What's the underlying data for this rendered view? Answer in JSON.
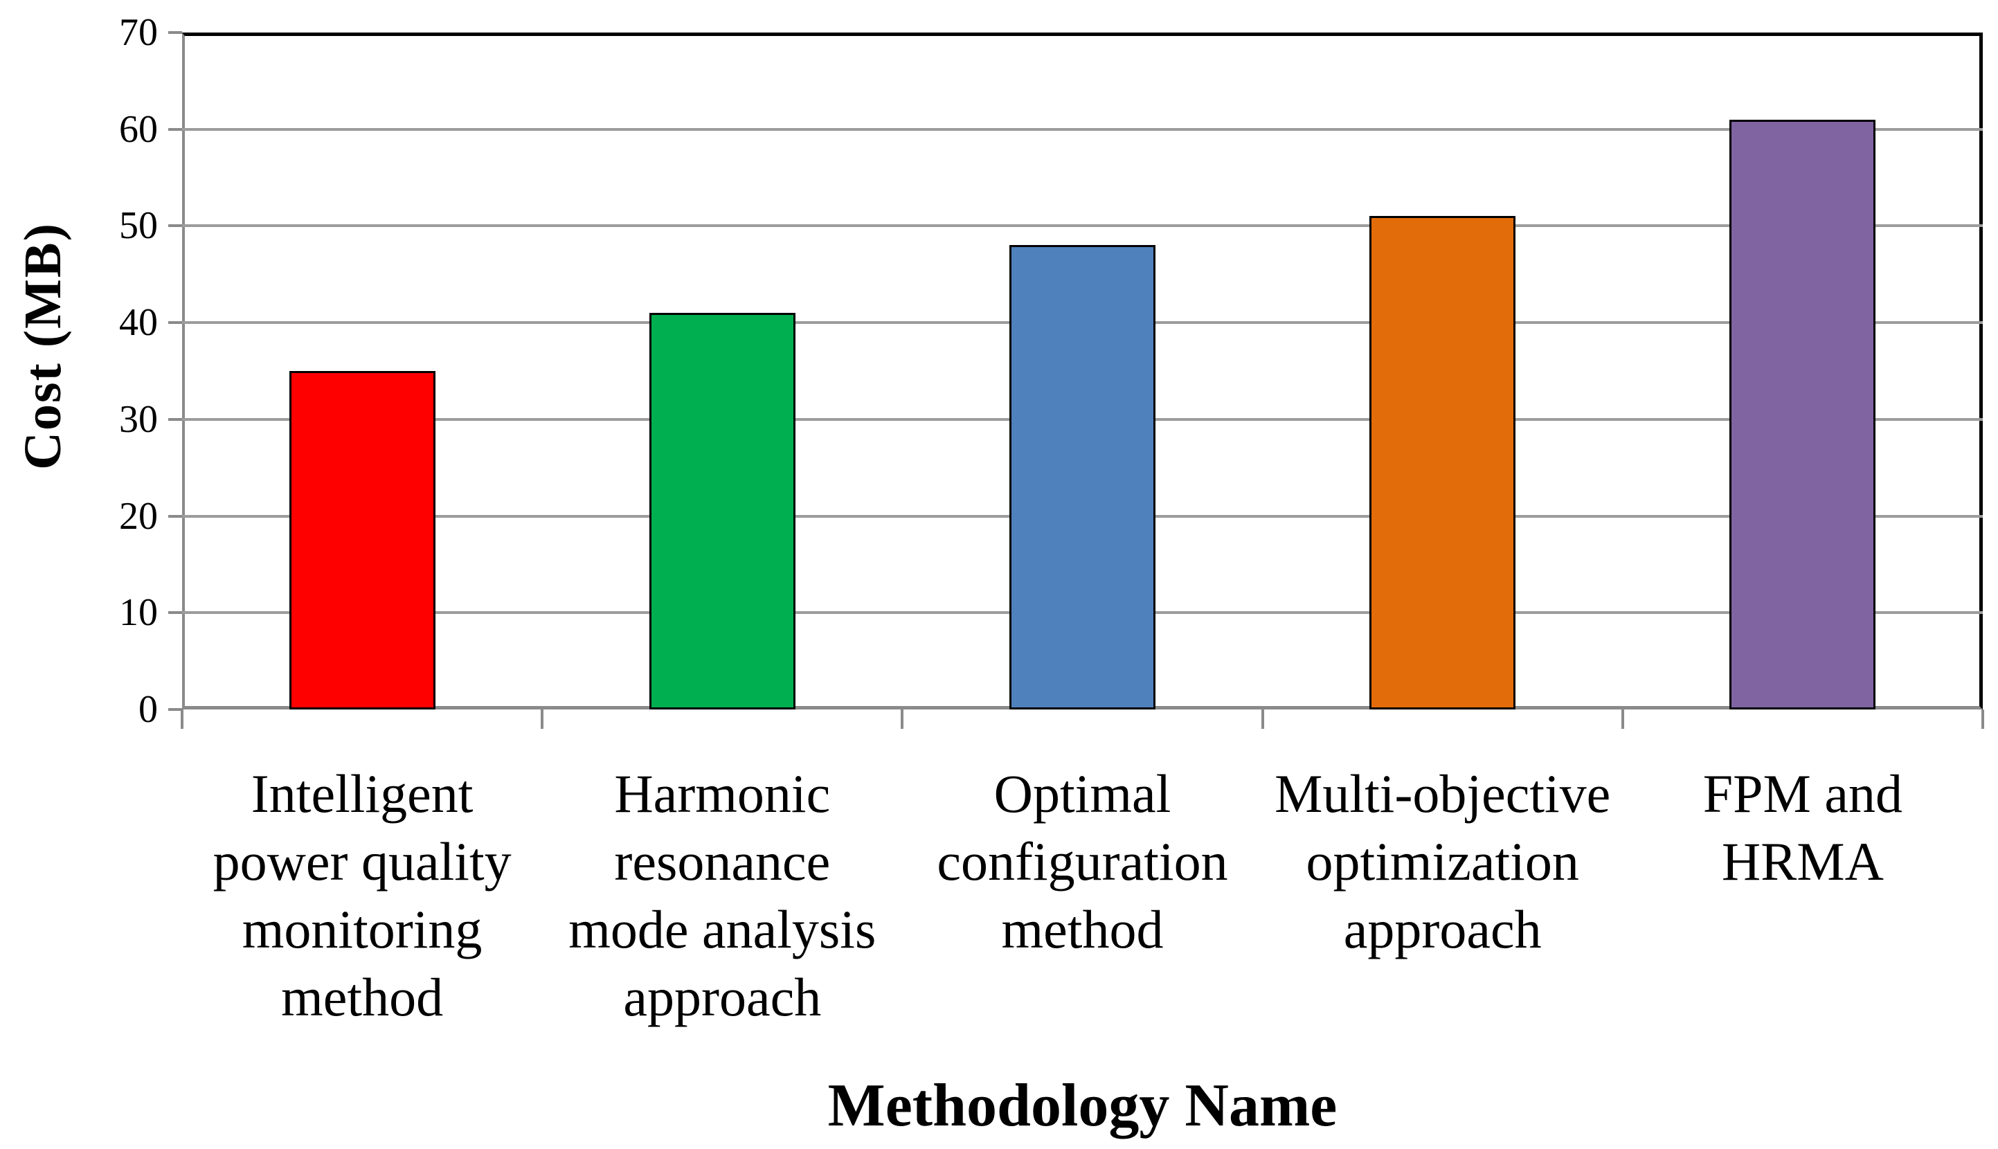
{
  "chart_data": {
    "type": "bar",
    "title": "",
    "xlabel": "Methodology Name",
    "ylabel": "Cost (MB)",
    "categories": [
      "Intelligent power quality monitoring method",
      "Harmonic resonance mode analysis approach",
      "Optimal configuration method",
      "Multi-objective optimization approach",
      "FPM and HRMA"
    ],
    "category_lines": [
      [
        "Intelligent",
        "power quality",
        "monitoring",
        "method"
      ],
      [
        "Harmonic",
        "resonance",
        "mode analysis",
        "approach"
      ],
      [
        "Optimal",
        "configuration",
        "method"
      ],
      [
        "Multi-objective",
        "optimization",
        "approach"
      ],
      [
        "FPM and",
        "HRMA"
      ]
    ],
    "values": [
      35,
      41,
      48,
      51,
      61
    ],
    "ylim": [
      0,
      70
    ],
    "ytick_step": 10,
    "ytick_labels": [
      "0",
      "10",
      "20",
      "30",
      "40",
      "50",
      "60",
      "70"
    ],
    "grid": true,
    "legend_position": "none",
    "bar_colors": [
      "#FF0000",
      "#00B050",
      "#4F81BD",
      "#E36C0A",
      "#8064A2"
    ],
    "bar_border_color": "#000000",
    "gridline_color": "#9C9C9C",
    "axis_color": "#8A8A8A",
    "plot_border_color": "#000000",
    "background": "#FFFFFF"
  }
}
